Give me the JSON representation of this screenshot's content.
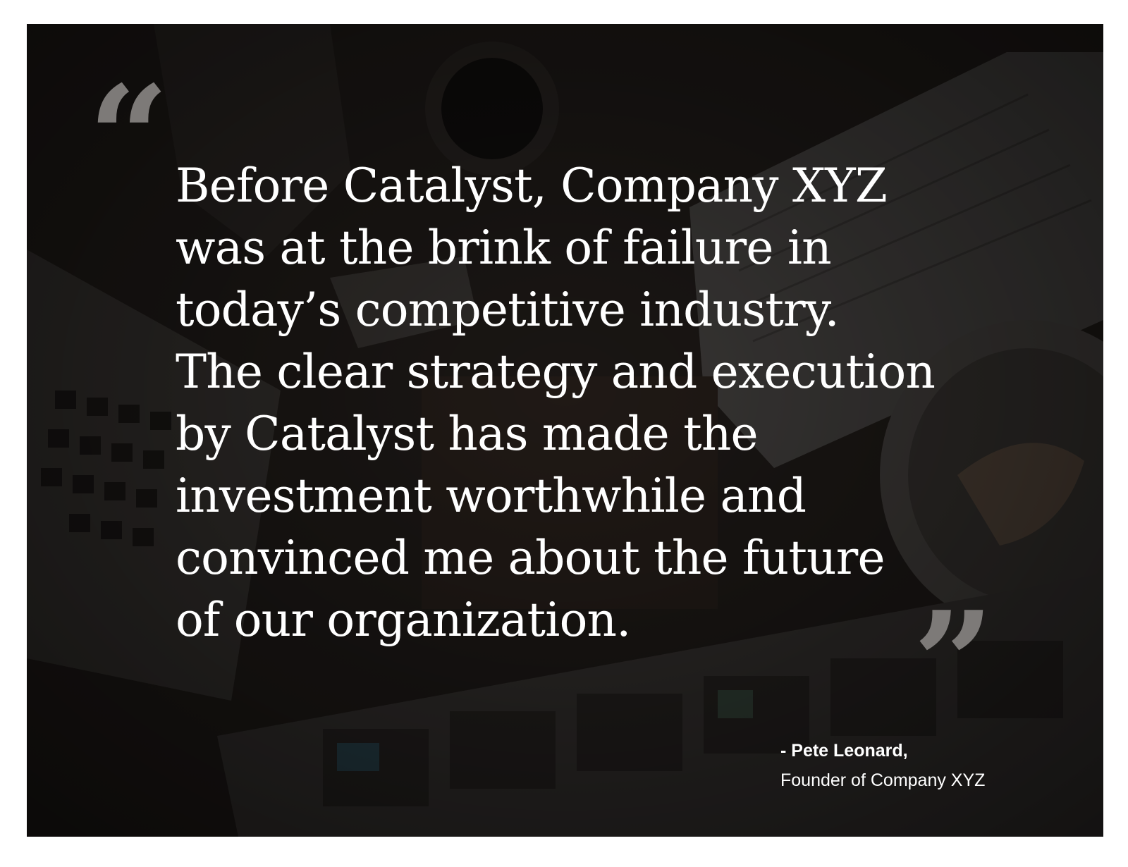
{
  "quote": {
    "open_mark": "“",
    "close_mark": "”",
    "lines": [
      "Before Catalyst, Company XYZ",
      "was at the brink of failure in",
      "today’s competitive industry.",
      "The clear strategy and execution",
      "by Catalyst has made the",
      "investment worthwhile and",
      "convinced me about the future",
      "of our organization."
    ]
  },
  "attribution": {
    "name": "- Pete Leonard,",
    "title": "Founder of Company XYZ"
  },
  "colors": {
    "background": "#221d1a",
    "quote_mark": "#7d7a78",
    "text": "#ffffff"
  }
}
